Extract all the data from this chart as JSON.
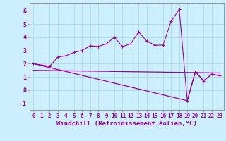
{
  "background_color": "#cceeff",
  "grid_color": "#aadddd",
  "line_color": "#990099",
  "xlabel": "Windchill (Refroidissement éolien,°C)",
  "xlim": [
    -0.5,
    23.5
  ],
  "ylim": [
    -1.5,
    6.6
  ],
  "yticks": [
    -1,
    0,
    1,
    2,
    3,
    4,
    5,
    6
  ],
  "xticks": [
    0,
    1,
    2,
    3,
    4,
    5,
    6,
    7,
    8,
    9,
    10,
    11,
    12,
    13,
    14,
    15,
    16,
    17,
    18,
    19,
    20,
    21,
    22,
    23
  ],
  "series1_x": [
    0,
    1,
    2,
    3,
    4,
    5,
    6,
    7,
    8,
    9,
    10,
    11,
    12,
    13,
    14,
    15,
    16,
    17,
    18,
    19,
    20,
    21,
    22,
    23
  ],
  "series1_y": [
    2.0,
    1.9,
    1.8,
    2.5,
    2.6,
    2.85,
    3.0,
    3.35,
    3.3,
    3.5,
    4.0,
    3.3,
    3.5,
    4.4,
    3.7,
    3.4,
    3.4,
    5.2,
    6.1,
    -0.8,
    1.4,
    0.7,
    1.2,
    1.1
  ],
  "series2_x": [
    0,
    19,
    20,
    21,
    22,
    23
  ],
  "series2_y": [
    2.0,
    -0.8,
    1.4,
    0.7,
    1.2,
    1.1
  ],
  "series3_x": [
    0,
    23
  ],
  "series3_y": [
    1.5,
    1.3
  ],
  "font_size_label": 6.5,
  "font_size_tick": 5.5
}
